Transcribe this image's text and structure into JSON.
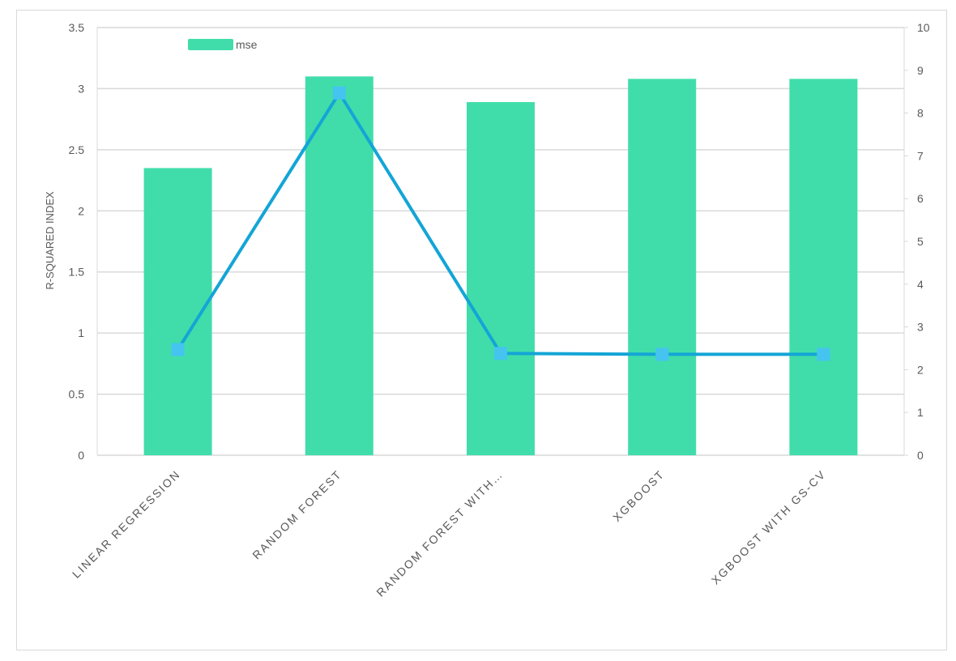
{
  "chart_data": {
    "type": "bar",
    "categories": [
      "LINEAR REGRESSION",
      "RANDOM FOREST",
      "RANDOM FOREST WITH…",
      "XGBOOST",
      "XGBOOST WITH GS-CV"
    ],
    "series": [
      {
        "name": "mse",
        "type": "bar",
        "axis": "left",
        "values": [
          2.35,
          3.1,
          2.89,
          3.08,
          3.08
        ]
      },
      {
        "type": "line",
        "axis": "right",
        "values": [
          2.47,
          8.47,
          2.38,
          2.36,
          2.36
        ]
      }
    ],
    "ylabel": "R-SQUARED INDEX",
    "y_left": {
      "min": 0,
      "max": 3.5,
      "ticks": [
        "0",
        "0.5",
        "1",
        "1.5",
        "2",
        "2.5",
        "3",
        "3.5"
      ]
    },
    "y_right": {
      "min": 0,
      "max": 10,
      "ticks": [
        "0",
        "1",
        "2",
        "3",
        "4",
        "5",
        "6",
        "7",
        "8",
        "9",
        "10"
      ]
    },
    "grid": true,
    "legend": {
      "position": "top-left",
      "entries": [
        "mse"
      ]
    },
    "colors": {
      "bar": "#40DDAB",
      "line": "#14A5D6",
      "marker": "#45C4F0",
      "grid": "#d9d9d9",
      "text": "#595959"
    }
  }
}
